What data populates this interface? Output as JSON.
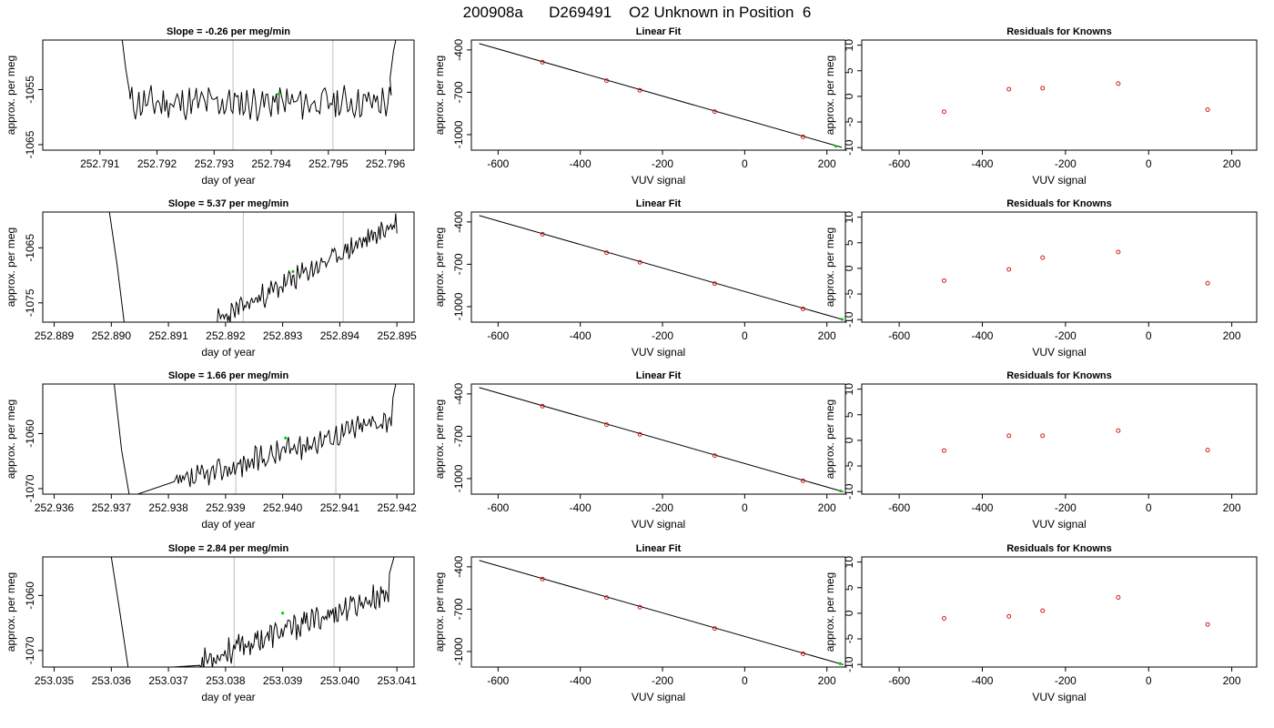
{
  "page_title": "200908a      D269491    O2 Unknown in Position  6",
  "colors": {
    "line": "#000000",
    "known_point": "#cc0000",
    "unknown_point": "#00cc00",
    "vline": "#bfbfbf",
    "frame": "#000000"
  },
  "chart_data": [
    {
      "type": "line",
      "title": "Slope =  -0.26  per meg/min",
      "xlabel": "day of year",
      "ylabel": "approx. per meg",
      "xlim": [
        252.79,
        252.7965
      ],
      "ylim": [
        -1066,
        -1046
      ],
      "xticks": [
        "252.791",
        "252.792",
        "252.793",
        "252.794",
        "252.795",
        "252.796"
      ],
      "yticks": [
        "-1055",
        "-1065"
      ],
      "vlines": [
        252.79333,
        252.79508
      ],
      "green_point": [
        252.79413,
        -1055.8
      ],
      "segment_x": [
        252.79153,
        252.7961
      ],
      "trend_x": [
        252.79155,
        252.79605
      ],
      "trend_y": [
        -1057.5,
        -1057.3
      ],
      "noise_amp": 2.6,
      "seed": 11,
      "head": [
        [
          252.79138,
          -1045
        ],
        [
          252.79145,
          -1051
        ],
        [
          252.79152,
          -1055.5
        ]
      ],
      "tail": [
        [
          252.79608,
          -1053
        ],
        [
          252.79614,
          -1048
        ],
        [
          252.7962,
          -1045
        ]
      ]
    },
    {
      "type": "line",
      "title": "Slope =  5.37  per meg/min",
      "xlabel": "day of year",
      "ylabel": "approx. per meg",
      "xlim": [
        252.8888,
        252.8953
      ],
      "ylim": [
        -1078.5,
        -1058.5
      ],
      "xticks": [
        "252.889",
        "252.890",
        "252.891",
        "252.892",
        "252.893",
        "252.894",
        "252.895"
      ],
      "yticks": [
        "-1065",
        "-1075"
      ],
      "vlines": [
        252.89231,
        252.89406
      ],
      "green_point": [
        252.89318,
        -1069.3
      ],
      "segment_x": [
        252.89185,
        252.895
      ],
      "trend_x": [
        252.89185,
        252.895
      ],
      "trend_y": [
        -1078.3,
        -1060.5
      ],
      "noise_amp": 1.8,
      "seed": 23,
      "head": [
        [
          252.88996,
          -1058
        ],
        [
          252.8901,
          -1068
        ],
        [
          252.89023,
          -1079
        ]
      ],
      "tail": []
    },
    {
      "type": "line",
      "title": "Slope =  1.66  per meg/min",
      "xlabel": "day of year",
      "ylabel": "approx. per meg",
      "xlim": [
        252.9358,
        252.9423
      ],
      "ylim": [
        -1071,
        -1051
      ],
      "xticks": [
        "252.936",
        "252.937",
        "252.938",
        "252.939",
        "252.940",
        "252.941",
        "252.942"
      ],
      "yticks": [
        "-1060",
        "-1070"
      ],
      "vlines": [
        252.93918,
        252.94093
      ],
      "green_point": [
        252.94005,
        -1060.8
      ],
      "segment_x": [
        252.9381,
        252.9419
      ],
      "trend_x": [
        252.9381,
        252.9419
      ],
      "trend_y": [
        -1069.5,
        -1057.0
      ],
      "noise_amp": 2.0,
      "seed": 37,
      "head": [
        [
          252.93705,
          -1051
        ],
        [
          252.93718,
          -1063
        ],
        [
          252.93732,
          -1071.5
        ]
      ],
      "tail": [
        [
          252.94193,
          -1053.5
        ],
        [
          252.94198,
          -1051
        ]
      ]
    },
    {
      "type": "line",
      "title": "Slope =  2.84  per meg/min",
      "xlabel": "day of year",
      "ylabel": "approx. per meg",
      "xlim": [
        253.0348,
        253.0413
      ],
      "ylim": [
        -1073,
        -1053
      ],
      "xticks": [
        "253.035",
        "253.036",
        "253.037",
        "253.038",
        "253.039",
        "253.040",
        "253.041"
      ],
      "yticks": [
        "-1060",
        "-1070"
      ],
      "vlines": [
        253.03815,
        253.0399
      ],
      "green_point": [
        253.039,
        -1063.2
      ],
      "segment_x": [
        253.03755,
        253.04085
      ],
      "trend_x": [
        253.03755,
        253.04085
      ],
      "trend_y": [
        -1072.0,
        -1059.5
      ],
      "noise_amp": 2.0,
      "seed": 53,
      "head": [
        [
          253.036,
          -1053
        ],
        [
          253.03615,
          -1063
        ],
        [
          253.0363,
          -1073.5
        ]
      ],
      "tail": [
        [
          253.04087,
          -1056
        ],
        [
          253.04095,
          -1053
        ]
      ]
    },
    {
      "type": "scatter",
      "title": "Linear Fit",
      "xlabel": "VUV signal",
      "ylabel": "approx. per meg",
      "xlim": [
        -665,
        245
      ],
      "ylim": [
        -1110,
        -330
      ],
      "xticks": [
        -600,
        -400,
        -200,
        0,
        200
      ],
      "yticks": [
        -400,
        -700,
        -1000
      ],
      "fit_line": [
        [
          -646,
          -355
        ],
        [
          236,
          -1090
        ]
      ],
      "knowns": [
        [
          -492,
          -487
        ],
        [
          -336,
          -618
        ],
        [
          -255,
          -686
        ],
        [
          -73,
          -837
        ],
        [
          142,
          -1016
        ]
      ],
      "unknown": [
        [
          222,
          -1083
        ]
      ]
    },
    {
      "type": "scatter",
      "title": "Linear Fit",
      "xlabel": "VUV signal",
      "ylabel": "approx. per meg",
      "xlim": [
        -665,
        245
      ],
      "ylim": [
        -1110,
        -330
      ],
      "xticks": [
        -600,
        -400,
        -200,
        0,
        200
      ],
      "yticks": [
        -400,
        -700,
        -1000
      ],
      "fit_line": [
        [
          -646,
          -355
        ],
        [
          240,
          -1093
        ]
      ],
      "knowns": [
        [
          -492,
          -487
        ],
        [
          -336,
          -618
        ],
        [
          -255,
          -686
        ],
        [
          -73,
          -837
        ],
        [
          142,
          -1016
        ]
      ],
      "unknown": [
        [
          237,
          -1090
        ]
      ]
    },
    {
      "type": "scatter",
      "title": "Linear Fit",
      "xlabel": "VUV signal",
      "ylabel": "approx. per meg",
      "xlim": [
        -665,
        245
      ],
      "ylim": [
        -1110,
        -330
      ],
      "xticks": [
        -600,
        -400,
        -200,
        0,
        200
      ],
      "yticks": [
        -400,
        -700,
        -1000
      ],
      "fit_line": [
        [
          -646,
          -355
        ],
        [
          240,
          -1093
        ]
      ],
      "knowns": [
        [
          -492,
          -487
        ],
        [
          -336,
          -618
        ],
        [
          -255,
          -686
        ],
        [
          -73,
          -837
        ],
        [
          142,
          -1016
        ]
      ],
      "unknown": [
        [
          233,
          -1087
        ]
      ]
    },
    {
      "type": "scatter",
      "title": "Linear Fit",
      "xlabel": "VUV signal",
      "ylabel": "approx. per meg",
      "xlim": [
        -665,
        245
      ],
      "ylim": [
        -1110,
        -330
      ],
      "xticks": [
        -600,
        -400,
        -200,
        0,
        200
      ],
      "yticks": [
        -400,
        -700,
        -1000
      ],
      "fit_line": [
        [
          -646,
          -355
        ],
        [
          240,
          -1093
        ]
      ],
      "knowns": [
        [
          -492,
          -487
        ],
        [
          -336,
          -618
        ],
        [
          -255,
          -686
        ],
        [
          -73,
          -837
        ],
        [
          142,
          -1016
        ]
      ],
      "unknown": [
        [
          232,
          -1086
        ]
      ]
    },
    {
      "type": "scatter",
      "title": "Residuals for Knowns",
      "xlabel": "VUV signal",
      "ylabel": "approx. per meg",
      "xlim": [
        -690,
        260
      ],
      "ylim": [
        -10.5,
        11
      ],
      "xticks": [
        -600,
        -400,
        -200,
        0,
        200
      ],
      "yticks": [
        -10,
        -5,
        0,
        5,
        10
      ],
      "points": [
        [
          -492,
          -3.0
        ],
        [
          -336,
          1.4
        ],
        [
          -255,
          1.6
        ],
        [
          -73,
          2.5
        ],
        [
          142,
          -2.6
        ]
      ]
    },
    {
      "type": "scatter",
      "title": "Residuals for Knowns",
      "xlabel": "VUV signal",
      "ylabel": "approx. per meg",
      "xlim": [
        -690,
        260
      ],
      "ylim": [
        -10.5,
        11
      ],
      "xticks": [
        -600,
        -400,
        -200,
        0,
        200
      ],
      "yticks": [
        -10,
        -5,
        0,
        5,
        10
      ],
      "points": [
        [
          -492,
          -2.4
        ],
        [
          -336,
          -0.2
        ],
        [
          -255,
          2.1
        ],
        [
          -73,
          3.2
        ],
        [
          142,
          -2.9
        ]
      ]
    },
    {
      "type": "scatter",
      "title": "Residuals for Knowns",
      "xlabel": "VUV signal",
      "ylabel": "approx. per meg",
      "xlim": [
        -690,
        260
      ],
      "ylim": [
        -10.5,
        11
      ],
      "xticks": [
        -600,
        -400,
        -200,
        0,
        200
      ],
      "yticks": [
        -10,
        -5,
        0,
        5,
        10
      ],
      "points": [
        [
          -492,
          -2.0
        ],
        [
          -336,
          0.9
        ],
        [
          -255,
          0.9
        ],
        [
          -73,
          1.9
        ],
        [
          142,
          -1.9
        ]
      ]
    },
    {
      "type": "scatter",
      "title": "Residuals for Knowns",
      "xlabel": "VUV signal",
      "ylabel": "approx. per meg",
      "xlim": [
        -690,
        260
      ],
      "ylim": [
        -10.5,
        11
      ],
      "xticks": [
        -600,
        -400,
        -200,
        0,
        200
      ],
      "yticks": [
        -10,
        -5,
        0,
        5,
        10
      ],
      "points": [
        [
          -492,
          -1.0
        ],
        [
          -336,
          -0.6
        ],
        [
          -255,
          0.5
        ],
        [
          -73,
          3.1
        ],
        [
          142,
          -2.2
        ]
      ]
    }
  ]
}
